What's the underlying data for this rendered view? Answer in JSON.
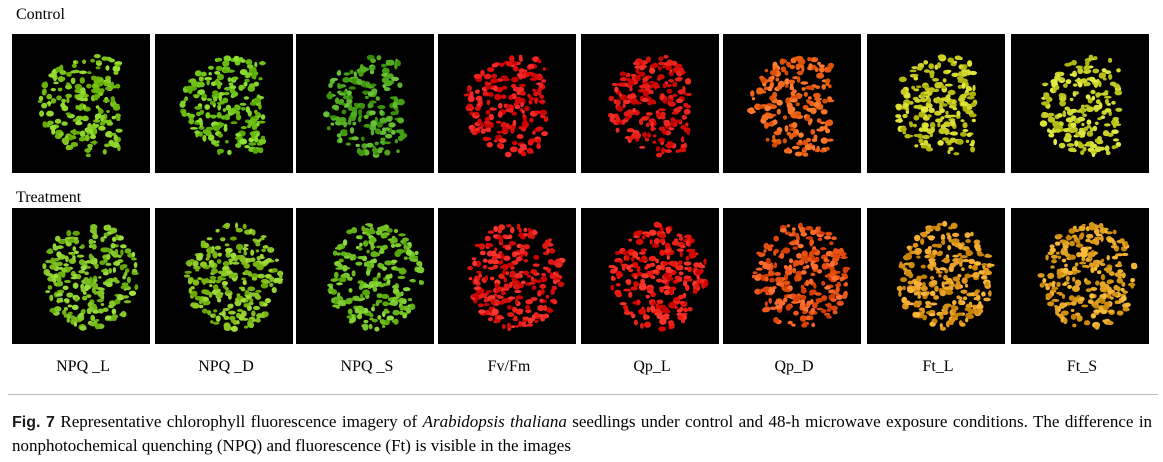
{
  "figure": {
    "rows": [
      {
        "label": "Control"
      },
      {
        "label": "Treatment"
      }
    ],
    "columns": [
      {
        "label": "NPQ _L",
        "icon": "seedling-fluorescence-image",
        "color_control": "#7dc41a",
        "color_treatment": "#7fc223"
      },
      {
        "label": "NPQ _D",
        "icon": "seedling-fluorescence-image",
        "color_control": "#72c41a",
        "color_treatment": "#86c21f"
      },
      {
        "label": "NPQ _S",
        "icon": "seedling-fluorescence-image",
        "color_control": "#4fa81e",
        "color_treatment": "#6fbf22"
      },
      {
        "label": "Fv/Fm",
        "icon": "seedling-fluorescence-image",
        "color_control": "#e01212",
        "color_treatment": "#e01a14"
      },
      {
        "label": "Qp_L",
        "icon": "seedling-fluorescence-image",
        "color_control": "#dc1410",
        "color_treatment": "#e51a10"
      },
      {
        "label": "Qp_D",
        "icon": "seedling-fluorescence-image",
        "color_control": "#f0661a",
        "color_treatment": "#ec5518"
      },
      {
        "label": "Ft_L",
        "icon": "seedling-fluorescence-image",
        "color_control": "#c8cc22",
        "color_treatment": "#e09a20"
      },
      {
        "label": "Ft_S",
        "icon": "seedling-fluorescence-image",
        "color_control": "#c8d22a",
        "color_treatment": "#e0a021"
      }
    ]
  },
  "caption": {
    "label": "Fig. 7",
    "text_before_species": "Representative chlorophyll fluorescence imagery of",
    "species": "Arabidopsis thaliana",
    "text_after_species": "seedlings under control and 48-h microwave exposure conditions. The difference in nonphotochemical quenching (NPQ) and fluorescence (Ft) is visible in the images"
  }
}
